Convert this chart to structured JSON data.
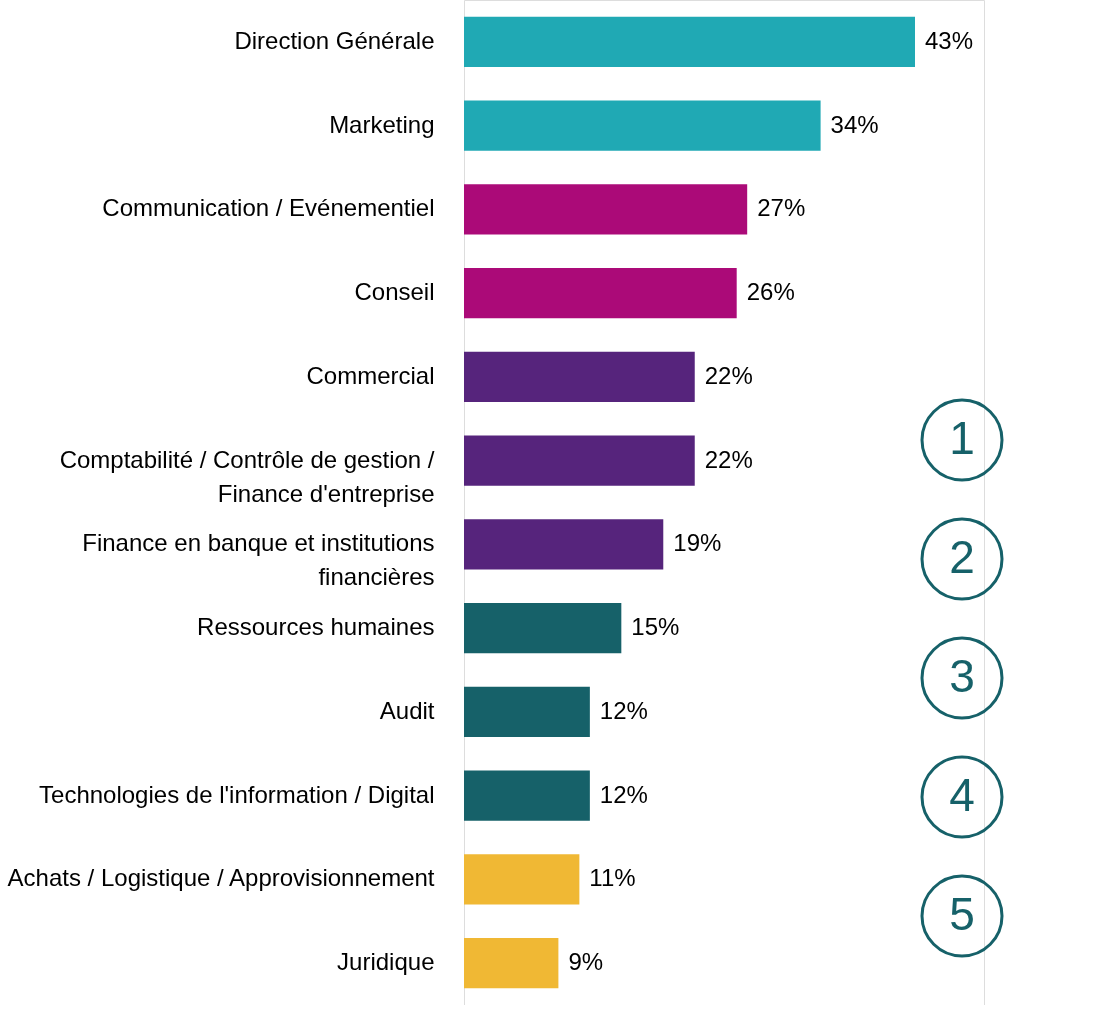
{
  "chart_data": {
    "type": "bar",
    "orientation": "horizontal",
    "categories": [
      "Direction Générale",
      "Marketing",
      "Communication / Evénementiel",
      "Conseil",
      "Commercial",
      "Comptabilité / Contrôle de gestion /\nFinance d'entreprise",
      "Finance en banque et institutions\nfinancières",
      "Ressources humaines",
      "Audit",
      "Technologies de l'information / Digital",
      "Achats / Logistique / Approvisionnement",
      "Juridique"
    ],
    "values": [
      43,
      34,
      27,
      26,
      22,
      22,
      19,
      15,
      12,
      12,
      11,
      9
    ],
    "colors": [
      "#20a9b4",
      "#20a9b4",
      "#ab0a78",
      "#ab0a78",
      "#56247c",
      "#56247c",
      "#56247c",
      "#166169",
      "#166169",
      "#166169",
      "#f0b834",
      "#f0b834"
    ],
    "value_labels": [
      "43%",
      "34%",
      "27%",
      "26%",
      "22%",
      "22%",
      "19%",
      "15%",
      "12%",
      "12%",
      "11%",
      "9%"
    ],
    "annotations": [
      "1",
      "2",
      "3",
      "4",
      "5"
    ]
  }
}
